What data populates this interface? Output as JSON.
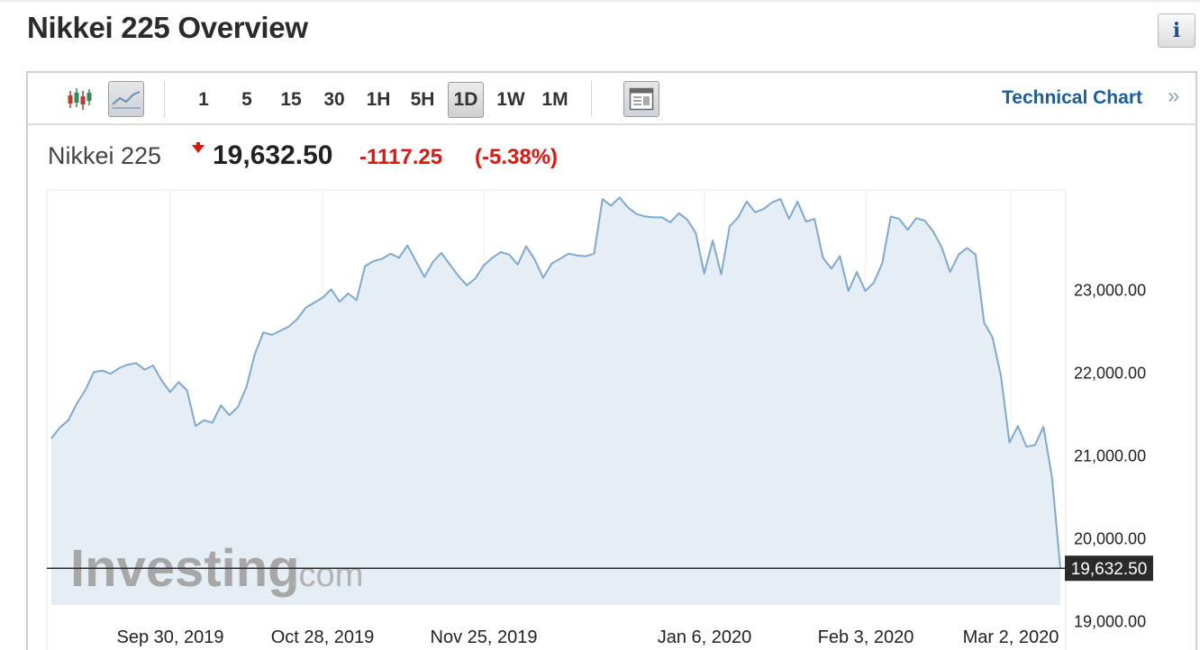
{
  "page": {
    "title": "Nikkei 225 Overview"
  },
  "toolbar": {
    "chart_types": [
      {
        "name": "candlestick-icon",
        "active": false
      },
      {
        "name": "line-chart-icon",
        "active": true
      }
    ],
    "timeframes": [
      "1",
      "5",
      "15",
      "30",
      "1H",
      "5H",
      "1D",
      "1W",
      "1M"
    ],
    "active_timeframe": "1D",
    "technical_chart_label": "Technical Chart",
    "technical_chart_arrow": "»"
  },
  "quote": {
    "name": "Nikkei 225",
    "price": "19,632.50",
    "change": "-1117.25",
    "change_pct": "(-5.38%)",
    "direction": "down"
  },
  "watermark": {
    "brand": "Investing",
    "suffix": ".com"
  },
  "colors": {
    "down": "#e3150e",
    "link": "#1c5c9e",
    "line": "#7fa9d1",
    "fill": "#e6eef5",
    "last_price_label": "#2a2a2a"
  },
  "chart_data": {
    "type": "area",
    "ylim": [
      18700,
      24200
    ],
    "y_ticks": [
      19000,
      20000,
      21000,
      22000,
      23000
    ],
    "y_tick_labels": [
      "19,000.00",
      "20,000.00",
      "21,000.00",
      "22,000.00",
      "23,000.00"
    ],
    "x_labels": [
      "Sep 30, 2019",
      "Oct 28, 2019",
      "Nov 25, 2019",
      "Jan 6, 2020",
      "Feb 3, 2020",
      "Mar 2, 2020"
    ],
    "last_price": 19632.5,
    "last_price_label": "19,632.50",
    "values": [
      21200,
      21330,
      21420,
      21620,
      21780,
      22000,
      22020,
      21980,
      22050,
      22090,
      22110,
      22030,
      22080,
      21900,
      21760,
      21880,
      21780,
      21350,
      21420,
      21390,
      21600,
      21480,
      21580,
      21820,
      22220,
      22480,
      22450,
      22500,
      22550,
      22640,
      22780,
      22840,
      22900,
      23000,
      22850,
      22950,
      22870,
      23280,
      23340,
      23370,
      23430,
      23380,
      23530,
      23340,
      23150,
      23330,
      23440,
      23300,
      23160,
      23050,
      23130,
      23290,
      23380,
      23450,
      23420,
      23300,
      23520,
      23360,
      23140,
      23310,
      23370,
      23430,
      23410,
      23400,
      23430,
      24090,
      24010,
      24110,
      23990,
      23910,
      23880,
      23870,
      23870,
      23810,
      23920,
      23840,
      23680,
      23190,
      23590,
      23180,
      23760,
      23870,
      24060,
      23930,
      23970,
      24050,
      24090,
      23850,
      24060,
      23820,
      23850,
      23380,
      23250,
      23400,
      22980,
      23210,
      22980,
      23080,
      23320,
      23880,
      23850,
      23720,
      23860,
      23830,
      23700,
      23510,
      23210,
      23420,
      23500,
      23420,
      22600,
      22420,
      21950,
      21150,
      21350,
      21100,
      21120,
      21340,
      20740,
      19632.5
    ]
  }
}
